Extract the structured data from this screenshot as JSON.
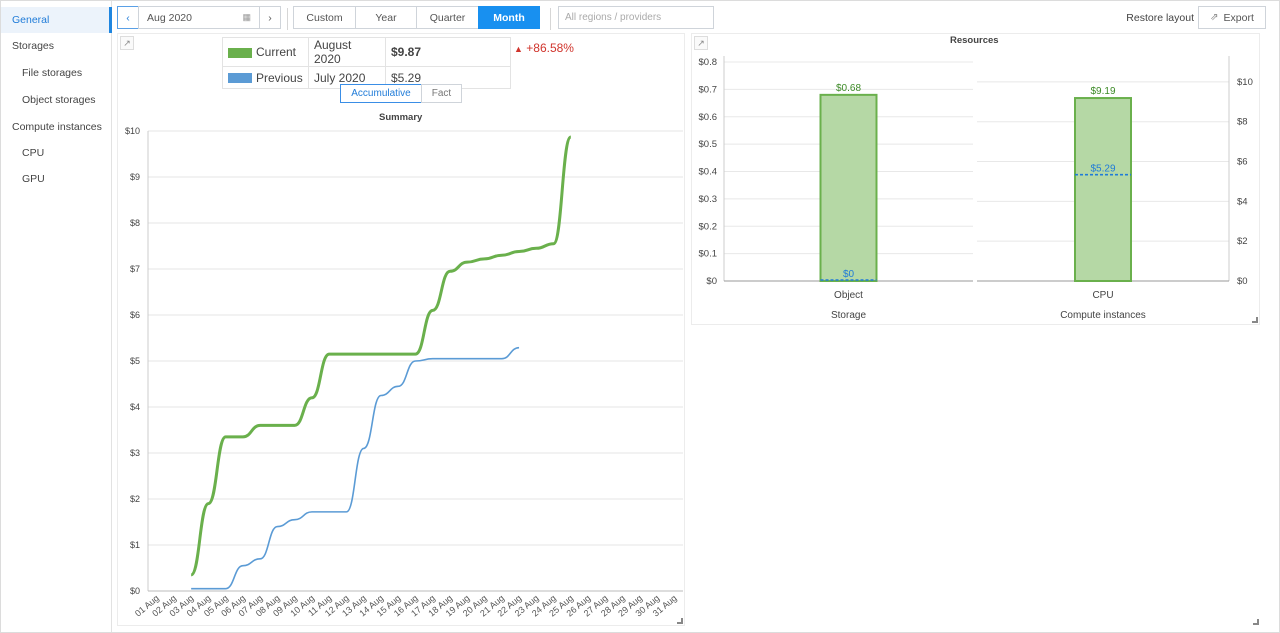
{
  "sidebar": {
    "items": [
      {
        "label": "General",
        "level": "top",
        "active": true
      },
      {
        "label": "Storages",
        "level": "top",
        "active": false
      },
      {
        "label": "File storages",
        "level": "sub",
        "active": false
      },
      {
        "label": "Object storages",
        "level": "sub",
        "active": false
      },
      {
        "label": "Compute instances",
        "level": "top",
        "active": false
      },
      {
        "label": "CPU",
        "level": "sub",
        "active": false
      },
      {
        "label": "GPU",
        "level": "sub",
        "active": false
      }
    ]
  },
  "toolbar": {
    "date": "Aug 2020",
    "periods": [
      "Custom",
      "Year",
      "Quarter",
      "Month"
    ],
    "active_period": "Month",
    "region_placeholder": "All regions / providers",
    "restore_label": "Restore layout",
    "export_label": "Export"
  },
  "summary": {
    "current_label": "Current",
    "current_period": "August 2020",
    "current_value": "$9.87",
    "previous_label": "Previous",
    "previous_period": "July 2020",
    "previous_value": "$5.29",
    "delta": "+86.58%",
    "toggle_accumulative": "Accumulative",
    "toggle_fact": "Fact",
    "colors": {
      "current": "#6ab04c",
      "previous": "#5b9bd5",
      "delta": "#d0342c"
    }
  },
  "chart_data": [
    {
      "type": "line",
      "title": "Summary",
      "x": [
        "01 Aug",
        "02 Aug",
        "03 Aug",
        "04 Aug",
        "05 Aug",
        "06 Aug",
        "07 Aug",
        "08 Aug",
        "09 Aug",
        "10 Aug",
        "11 Aug",
        "12 Aug",
        "13 Aug",
        "14 Aug",
        "15 Aug",
        "16 Aug",
        "17 Aug",
        "18 Aug",
        "19 Aug",
        "20 Aug",
        "21 Aug",
        "22 Aug",
        "23 Aug",
        "24 Aug",
        "25 Aug",
        "26 Aug",
        "27 Aug",
        "28 Aug",
        "29 Aug",
        "30 Aug",
        "31 Aug"
      ],
      "yticks": [
        "$0",
        "$1",
        "$2",
        "$3",
        "$4",
        "$5",
        "$6",
        "$7",
        "$8",
        "$9",
        "$10"
      ],
      "ylim": [
        0,
        10
      ],
      "grid": true,
      "series": [
        {
          "name": "Current",
          "color": "#6ab04c",
          "values": [
            null,
            null,
            0.35,
            1.9,
            3.35,
            3.35,
            3.6,
            3.6,
            3.6,
            4.2,
            5.15,
            5.15,
            5.15,
            5.15,
            5.15,
            5.15,
            6.1,
            6.95,
            7.15,
            7.22,
            7.3,
            7.38,
            7.45,
            7.55,
            9.87,
            null,
            null,
            null,
            null,
            null,
            null
          ]
        },
        {
          "name": "Previous",
          "color": "#5b9bd5",
          "values": [
            null,
            null,
            0.05,
            0.05,
            0.05,
            0.55,
            0.7,
            1.4,
            1.55,
            1.72,
            1.72,
            1.72,
            3.1,
            4.25,
            4.45,
            5.0,
            5.05,
            5.05,
            5.05,
            5.05,
            5.05,
            5.29,
            null,
            null,
            null,
            null,
            null,
            null,
            null,
            null,
            null
          ]
        }
      ]
    },
    {
      "type": "bar",
      "title": "Resources",
      "groups": [
        {
          "label": "Storage",
          "category": "Object",
          "current": 0.68,
          "current_label": "$0.68",
          "previous": 0,
          "previous_label": "$0",
          "yticks": [
            "$0",
            "$0.1",
            "$0.2",
            "$0.3",
            "$0.4",
            "$0.5",
            "$0.6",
            "$0.7",
            "$0.8"
          ],
          "ylim": [
            0,
            0.8
          ]
        },
        {
          "label": "Compute instances",
          "category": "CPU",
          "current": 9.19,
          "current_label": "$9.19",
          "previous": 5.29,
          "previous_label": "$5.29",
          "yticks": [
            "$0",
            "$2",
            "$4",
            "$6",
            "$8",
            "$10"
          ],
          "ylim": [
            0,
            11
          ]
        }
      ],
      "colors": {
        "bar_fill": "#b5d8a5",
        "bar_stroke": "#6ab04c",
        "previous": "#1f7bd8"
      }
    }
  ]
}
